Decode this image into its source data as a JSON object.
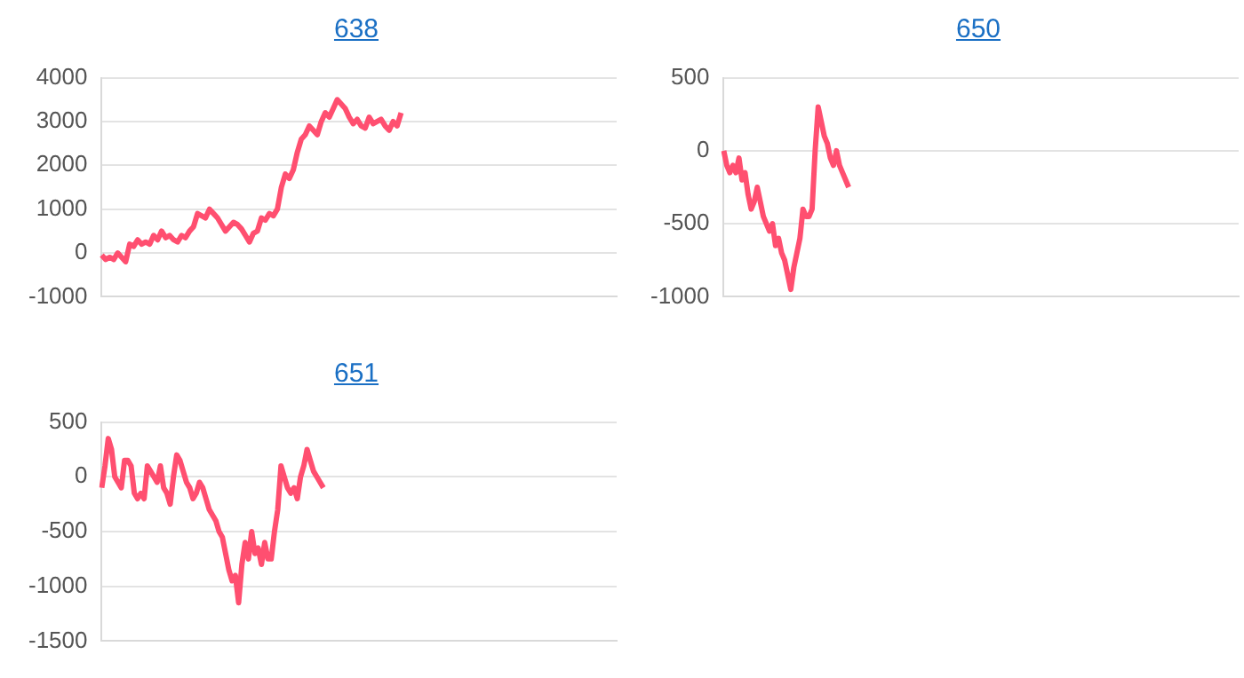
{
  "chart_data": [
    {
      "type": "line",
      "title": "638",
      "categories": [
        null,
        null,
        null,
        null,
        null,
        null,
        null,
        null,
        null,
        null,
        null,
        null,
        null,
        null,
        null,
        null,
        null,
        null,
        null,
        null,
        null,
        null,
        null,
        null,
        null,
        null,
        null,
        null,
        null,
        null,
        null,
        null,
        null,
        null,
        null,
        null,
        null,
        null,
        null,
        null,
        null,
        null,
        null,
        null,
        null,
        null,
        null,
        null,
        null,
        null,
        null,
        null,
        null,
        null,
        null,
        null,
        null,
        null,
        null,
        null,
        null,
        null,
        null,
        null,
        null,
        null,
        null,
        null,
        null,
        null,
        null,
        null,
        null,
        null,
        null,
        null,
        null,
        null,
        null,
        null,
        null,
        null,
        null,
        null,
        null,
        null,
        null,
        null,
        null,
        null,
        null,
        null,
        null,
        null,
        null,
        null,
        null,
        null,
        null,
        null,
        null,
        null,
        null,
        null,
        null,
        null,
        null,
        null,
        null,
        null,
        null,
        null,
        null,
        null,
        null,
        null,
        null,
        null,
        null,
        null,
        null,
        null,
        null,
        null,
        null,
        null,
        null,
        null,
        null,
        null
      ],
      "series": [
        {
          "color": "#ff4f70",
          "values": [
            -50,
            -150,
            -100,
            -150,
            0,
            -100,
            -200,
            200,
            150,
            300,
            200,
            250,
            200,
            400,
            300,
            500,
            350,
            400,
            300,
            250,
            400,
            350,
            500,
            600,
            900,
            850,
            800,
            1000,
            900,
            800,
            650,
            500,
            600,
            700,
            650,
            550,
            400,
            250,
            450,
            500,
            800,
            750,
            900,
            850,
            1000,
            1500,
            1800,
            1700,
            1900,
            2300,
            2600,
            2700,
            2900,
            2800,
            2700,
            3000,
            3200,
            3100,
            3300,
            3500,
            3400,
            3300,
            3100,
            2950,
            3050,
            2900,
            2850,
            3100,
            2950,
            3000,
            3050,
            2900,
            2800,
            3000,
            2900,
            3200,
            null,
            null,
            null,
            null,
            null,
            null,
            null,
            null,
            null,
            null,
            null,
            null,
            null,
            null,
            null,
            null,
            null,
            null,
            null,
            null,
            null,
            null,
            null,
            null,
            null,
            null,
            null,
            null,
            null,
            null,
            null,
            null,
            null,
            null,
            null,
            null,
            null,
            null,
            null,
            null,
            null,
            null,
            null,
            null,
            null,
            null,
            null,
            null,
            null,
            null,
            null,
            null,
            null,
            null
          ]
        }
      ],
      "ylim": [
        -1000,
        4000
      ],
      "yticks": [
        -1000,
        0,
        1000,
        2000,
        3000,
        4000
      ],
      "grid": "y",
      "marker": "none",
      "tick_labels": "y"
    },
    {
      "type": "line",
      "title": "650",
      "categories": [
        null,
        null,
        null,
        null,
        null,
        null,
        null,
        null,
        null,
        null,
        null,
        null,
        null,
        null,
        null,
        null,
        null,
        null,
        null,
        null,
        null,
        null,
        null,
        null,
        null,
        null,
        null,
        null,
        null,
        null,
        null,
        null,
        null,
        null,
        null,
        null,
        null,
        null,
        null,
        null,
        null,
        null,
        null,
        null,
        null,
        null,
        null,
        null,
        null,
        null,
        null,
        null,
        null,
        null,
        null,
        null,
        null,
        null,
        null,
        null,
        null,
        null,
        null,
        null,
        null,
        null,
        null,
        null,
        null,
        null,
        null,
        null,
        null,
        null,
        null,
        null,
        null,
        null,
        null,
        null,
        null,
        null,
        null,
        null,
        null,
        null,
        null,
        null,
        null,
        null,
        null,
        null,
        null,
        null,
        null,
        null,
        null,
        null,
        null,
        null,
        null,
        null,
        null,
        null,
        null,
        null,
        null,
        null,
        null,
        null,
        null,
        null,
        null,
        null,
        null,
        null,
        null,
        null,
        null,
        null,
        null,
        null,
        null,
        null,
        null,
        null,
        null,
        null,
        null,
        null,
        null,
        null,
        null,
        null,
        null,
        null,
        null,
        null,
        null,
        null,
        null,
        null,
        null,
        null,
        null,
        null,
        null,
        null,
        null,
        null,
        null,
        null,
        null,
        null,
        null,
        null,
        null,
        null,
        null,
        null,
        null,
        null,
        null,
        null,
        null,
        null,
        null,
        null,
        null,
        null
      ],
      "series": [
        {
          "color": "#ff4f70",
          "values": [
            0,
            -100,
            -150,
            -100,
            -150,
            -50,
            -200,
            -150,
            -300,
            -400,
            -350,
            -250,
            -350,
            -450,
            -500,
            -550,
            -500,
            -650,
            -600,
            -700,
            -750,
            -850,
            -950,
            -800,
            -700,
            -600,
            -400,
            -450,
            -450,
            -400,
            0,
            300,
            200,
            100,
            50,
            -50,
            -100,
            0,
            -100,
            -150,
            -200,
            -250,
            null,
            null,
            null,
            null,
            null,
            null,
            null,
            null,
            null,
            null,
            null,
            null,
            null,
            null,
            null,
            null,
            null,
            null,
            null,
            null,
            null,
            null,
            null,
            null,
            null,
            null,
            null,
            null,
            null,
            null,
            null,
            null,
            null,
            null,
            null,
            null,
            null,
            null,
            null,
            null,
            null,
            null,
            null,
            null,
            null,
            null,
            null,
            null,
            null,
            null,
            null,
            null,
            null,
            null,
            null,
            null,
            null,
            null,
            null,
            null,
            null,
            null,
            null,
            null,
            null,
            null,
            null,
            null,
            null,
            null,
            null,
            null,
            null,
            null,
            null,
            null,
            null,
            null,
            null,
            null,
            null,
            null,
            null,
            null,
            null,
            null,
            null,
            null,
            null,
            null,
            null,
            null,
            null,
            null,
            null,
            null,
            null,
            null,
            null,
            null,
            null,
            null,
            null,
            null,
            null,
            null,
            null,
            null,
            null,
            null,
            null,
            null,
            null,
            null,
            null,
            null,
            null,
            null,
            null,
            null,
            null,
            null,
            null,
            null,
            null,
            null,
            null,
            null
          ]
        }
      ],
      "ylim": [
        -1000,
        500
      ],
      "yticks": [
        -1000,
        -500,
        0,
        500
      ],
      "grid": "y",
      "marker": "none",
      "tick_labels": "y"
    },
    {
      "type": "line",
      "title": "651",
      "categories": [
        null,
        null,
        null,
        null,
        null,
        null,
        null,
        null,
        null,
        null,
        null,
        null,
        null,
        null,
        null,
        null,
        null,
        null,
        null,
        null,
        null,
        null,
        null,
        null,
        null,
        null,
        null,
        null,
        null,
        null,
        null,
        null,
        null,
        null,
        null,
        null,
        null,
        null,
        null,
        null,
        null,
        null,
        null,
        null,
        null,
        null,
        null,
        null,
        null,
        null,
        null,
        null,
        null,
        null,
        null,
        null,
        null,
        null,
        null,
        null,
        null,
        null,
        null,
        null,
        null,
        null,
        null,
        null,
        null,
        null,
        null,
        null,
        null,
        null,
        null,
        null,
        null,
        null,
        null,
        null,
        null,
        null,
        null,
        null,
        null,
        null,
        null,
        null,
        null,
        null,
        null,
        null,
        null,
        null,
        null,
        null,
        null,
        null,
        null,
        null,
        null,
        null,
        null,
        null,
        null,
        null,
        null,
        null,
        null,
        null,
        null,
        null,
        null,
        null,
        null,
        null,
        null,
        null,
        null,
        null,
        null,
        null,
        null,
        null,
        null,
        null,
        null,
        null,
        null,
        null,
        null,
        null,
        null,
        null,
        null,
        null,
        null,
        null,
        null,
        null,
        null,
        null,
        null,
        null,
        null,
        null,
        null,
        null,
        null,
        null,
        null,
        null,
        null,
        null,
        null,
        null,
        null,
        null,
        null
      ],
      "series": [
        {
          "color": "#ff4f70",
          "values": [
            -100,
            100,
            350,
            250,
            0,
            -50,
            -100,
            150,
            150,
            100,
            -150,
            -200,
            -150,
            -200,
            100,
            50,
            0,
            -50,
            100,
            -100,
            -150,
            -250,
            0,
            200,
            150,
            50,
            -50,
            -100,
            -200,
            -150,
            -50,
            -100,
            -200,
            -300,
            -350,
            -400,
            -500,
            -550,
            -700,
            -850,
            -950,
            -900,
            -1150,
            -800,
            -600,
            -750,
            -500,
            -700,
            -650,
            -800,
            -600,
            -750,
            -750,
            -500,
            -300,
            100,
            0,
            -100,
            -150,
            -100,
            -200,
            0,
            100,
            250,
            150,
            50,
            0,
            -50,
            -100,
            null,
            null,
            null,
            null,
            null,
            null,
            null,
            null,
            null,
            null,
            null,
            null,
            null,
            null,
            null,
            null,
            null,
            null,
            null,
            null,
            null,
            null,
            null,
            null,
            null,
            null,
            null,
            null,
            null,
            null,
            null,
            null,
            null,
            null,
            null,
            null,
            null,
            null,
            null,
            null,
            null,
            null,
            null,
            null,
            null,
            null,
            null,
            null,
            null,
            null,
            null,
            null,
            null,
            null,
            null,
            null,
            null,
            null,
            null,
            null,
            null,
            null,
            null,
            null,
            null,
            null,
            null,
            null,
            null,
            null,
            null,
            null,
            null,
            null,
            null,
            null,
            null,
            null,
            null,
            null,
            null,
            null,
            null,
            null,
            null,
            null,
            null,
            null,
            null,
            null
          ]
        }
      ],
      "ylim": [
        -1500,
        500
      ],
      "yticks": [
        -1500,
        -1000,
        -500,
        0,
        500
      ],
      "grid": "y",
      "marker": "none",
      "tick_labels": "y"
    }
  ]
}
